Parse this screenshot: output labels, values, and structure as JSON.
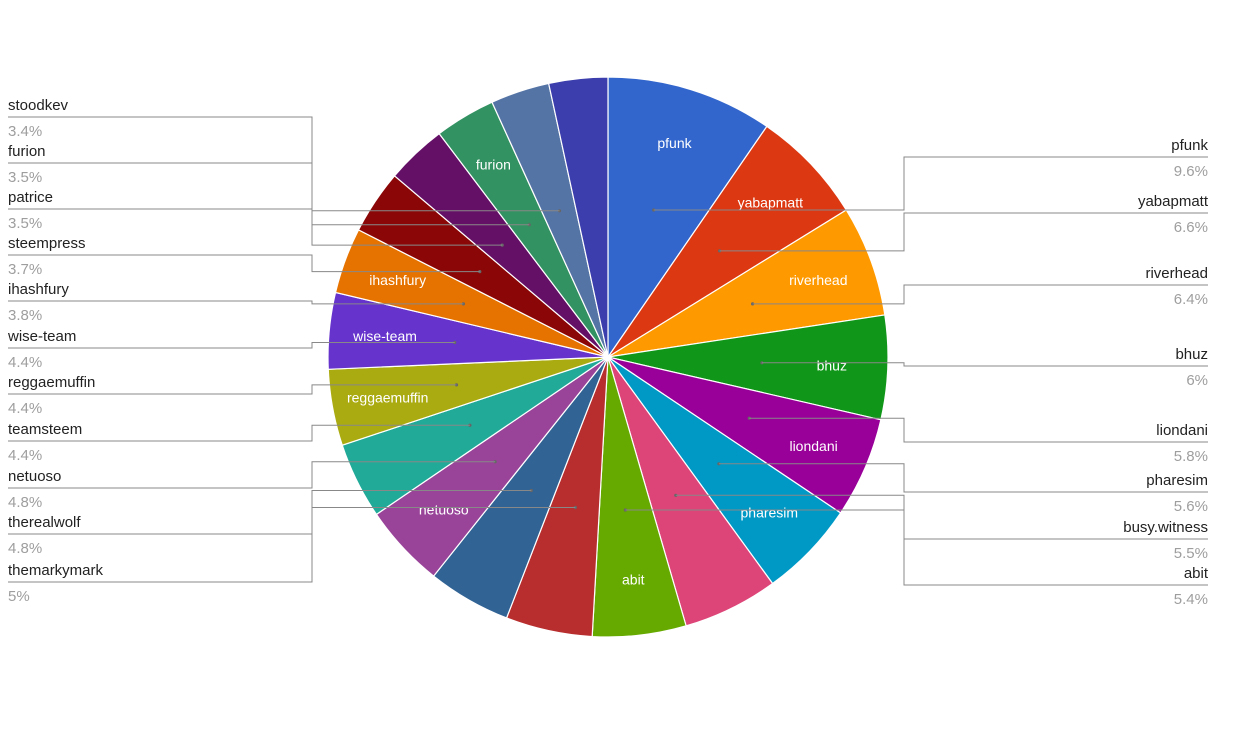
{
  "chart_data": {
    "type": "pie",
    "title": "",
    "slices": [
      {
        "label": "pfunk",
        "value": 9.6,
        "display": "9.6%",
        "color": "#3366cc",
        "in_slice": true
      },
      {
        "label": "yabapmatt",
        "value": 6.6,
        "display": "6.6%",
        "color": "#dc3912",
        "in_slice": true
      },
      {
        "label": "riverhead",
        "value": 6.4,
        "display": "6.4%",
        "color": "#ff9900",
        "in_slice": true
      },
      {
        "label": "bhuz",
        "value": 6.0,
        "display": "6%",
        "color": "#109618",
        "in_slice": true
      },
      {
        "label": "liondani",
        "value": 5.8,
        "display": "5.8%",
        "color": "#990099",
        "in_slice": true
      },
      {
        "label": "pharesim",
        "value": 5.6,
        "display": "5.6%",
        "color": "#0099c6",
        "in_slice": true
      },
      {
        "label": "busy.witness",
        "value": 5.5,
        "display": "5.5%",
        "color": "#dd4477",
        "in_slice": false
      },
      {
        "label": "abit",
        "value": 5.4,
        "display": "5.4%",
        "color": "#66aa00",
        "in_slice": true
      },
      {
        "label": "themarkymark",
        "value": 5.0,
        "display": "5%",
        "color": "#b82e2e",
        "in_slice": false
      },
      {
        "label": "therealwolf",
        "value": 4.8,
        "display": "4.8%",
        "color": "#316395",
        "in_slice": false
      },
      {
        "label": "netuoso",
        "value": 4.8,
        "display": "4.8%",
        "color": "#994499",
        "in_slice": true
      },
      {
        "label": "teamsteem",
        "value": 4.4,
        "display": "4.4%",
        "color": "#22aa99",
        "in_slice": false
      },
      {
        "label": "reggaemuffin",
        "value": 4.4,
        "display": "4.4%",
        "color": "#aaaa11",
        "in_slice": true
      },
      {
        "label": "wise-team",
        "value": 4.4,
        "display": "4.4%",
        "color": "#6633cc",
        "in_slice": true
      },
      {
        "label": "ihashfury",
        "value": 3.8,
        "display": "3.8%",
        "color": "#e67300",
        "in_slice": true
      },
      {
        "label": "steempress",
        "value": 3.7,
        "display": "3.7%",
        "color": "#8b0707",
        "in_slice": false
      },
      {
        "label": "patrice",
        "value": 3.5,
        "display": "3.5%",
        "color": "#651067",
        "in_slice": false
      },
      {
        "label": "furion",
        "value": 3.5,
        "display": "3.5%",
        "color": "#329262",
        "in_slice": true
      },
      {
        "label": "stoodkev",
        "value": 3.4,
        "display": "3.4%",
        "color": "#5574a6",
        "in_slice": false
      },
      {
        "label": "",
        "value": 3.4,
        "display": "",
        "color": "#3b3eac",
        "in_slice": false
      }
    ],
    "legend_placement": "side labels with leader lines (right and left)"
  }
}
